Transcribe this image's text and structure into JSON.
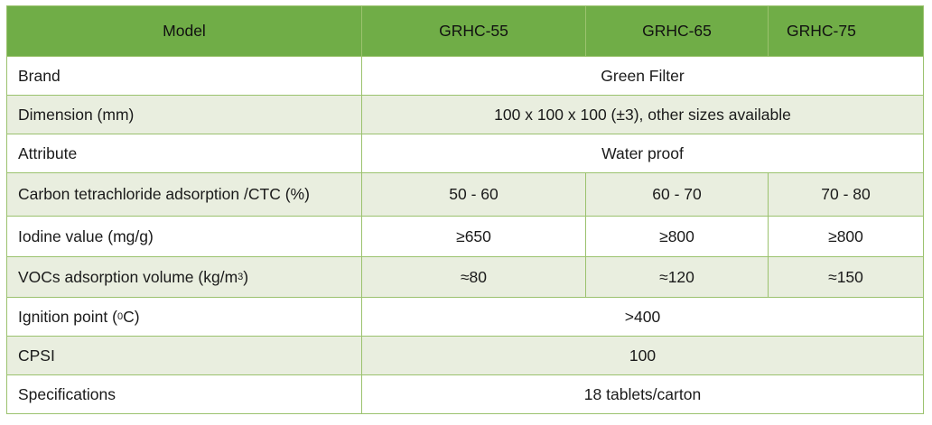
{
  "header": {
    "model_label": "Model",
    "models": [
      "GRHC-55",
      "GRHC-65",
      "GRHC-75"
    ]
  },
  "rows": {
    "brand": {
      "label": "Brand",
      "value": "Green Filter"
    },
    "dimension": {
      "label": "Dimension (mm)",
      "value": "100 x 100 x 100 (±3), other sizes available"
    },
    "attribute": {
      "label": "Attribute",
      "value": "Water proof"
    },
    "ctc": {
      "label": "Carbon tetrachloride adsorption /CTC (%)",
      "values": [
        "50 - 60",
        "60 - 70",
        "70 - 80"
      ]
    },
    "iodine": {
      "label": "Iodine value (mg/g)",
      "values": [
        "≥650",
        "≥800",
        "≥800"
      ]
    },
    "vocs": {
      "label_prefix": "VOCs adsorption volume (kg/m",
      "label_sup": "3",
      "label_suffix": ")",
      "values": [
        "≈80",
        "≈120",
        "≈150"
      ]
    },
    "ignition": {
      "label_prefix": "Ignition point (",
      "label_sup": "0",
      "label_suffix": "C)",
      "value": ">400"
    },
    "cpsi": {
      "label": "CPSI",
      "value": "100"
    },
    "specs": {
      "label": "Specifications",
      "value": "18 tablets/carton"
    }
  },
  "colors": {
    "header_bg": "#70ad47",
    "row_shade": "#e9eedf",
    "border": "#9bc26e"
  }
}
